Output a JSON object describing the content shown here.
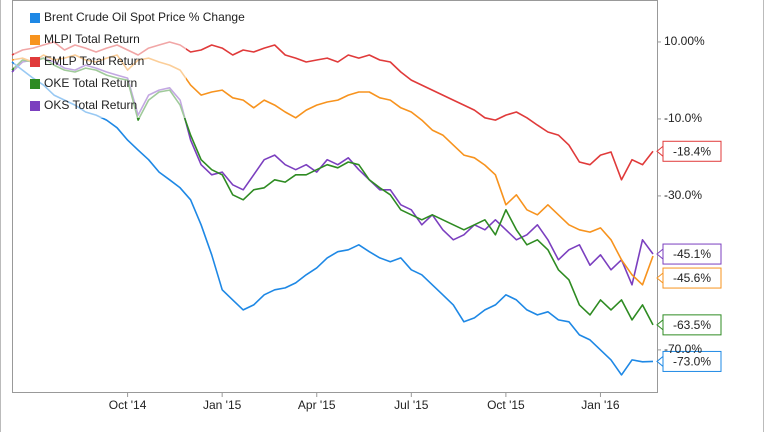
{
  "chart_data": {
    "type": "line",
    "categories": [
      null,
      null,
      null,
      null,
      null,
      null,
      null,
      null,
      null,
      null,
      null,
      "Oct '14",
      null,
      null,
      null,
      null,
      null,
      null,
      null,
      null,
      "Jan '15",
      null,
      null,
      null,
      null,
      null,
      null,
      null,
      null,
      "Apr '15",
      null,
      null,
      null,
      null,
      null,
      null,
      null,
      null,
      "Jul '15",
      null,
      null,
      null,
      null,
      null,
      null,
      null,
      null,
      "Oct '15",
      null,
      null,
      null,
      null,
      null,
      null,
      null,
      null,
      "Jan '16",
      null,
      null,
      null,
      null,
      null
    ],
    "ylim": [
      -81.2,
      20.9
    ],
    "yticks": [
      {
        "value": 10,
        "label": "10.00%"
      },
      {
        "value": -10,
        "label": "-10.0%"
      },
      {
        "value": -30,
        "label": "-30.0%"
      },
      {
        "value": -70,
        "label": "-70.0%"
      }
    ],
    "legend": "top-left",
    "series": [
      {
        "name": "Brent Crude Oil Spot Price % Change",
        "color": "#1e88e5",
        "values": [
          4.8,
          2.7,
          0.6,
          -1.2,
          -3.8,
          -5.1,
          -6.4,
          -8.2,
          -9.0,
          -10.3,
          -12.3,
          -15.5,
          -18.1,
          -20.6,
          -23.8,
          -25.8,
          -27.9,
          -31.0,
          -37.5,
          -45.3,
          -54.4,
          -57.0,
          -59.6,
          -58.3,
          -55.7,
          -54.4,
          -53.9,
          -52.6,
          -50.5,
          -48.7,
          -46.1,
          -44.5,
          -44.0,
          -42.7,
          -44.5,
          -46.1,
          -47.1,
          -46.1,
          -49.2,
          -50.5,
          -53.1,
          -55.7,
          -58.3,
          -62.7,
          -61.7,
          -59.6,
          -58.3,
          -55.7,
          -57.0,
          -59.6,
          -60.9,
          -60.1,
          -62.2,
          -62.7,
          -66.1,
          -67.4,
          -70.0,
          -72.6,
          -76.5,
          -72.6,
          -73.1,
          -73.0
        ],
        "value_labels": [
          null,
          null,
          null,
          null,
          null,
          null,
          null,
          null,
          null,
          null,
          null,
          null,
          null,
          null,
          null,
          null,
          null,
          null,
          null,
          null,
          null,
          null,
          null,
          null,
          null,
          null,
          null,
          null,
          null,
          null,
          null,
          null,
          null,
          null,
          null,
          null,
          null,
          null,
          null,
          null,
          null,
          null,
          null,
          null,
          null,
          null,
          null,
          null,
          null,
          null,
          null,
          null,
          null,
          null,
          null,
          null,
          null,
          null,
          null,
          null,
          null,
          "-73.0%"
        ]
      },
      {
        "name": "MLPI Total Return",
        "color": "#f7931e",
        "values": [
          5.3,
          5.8,
          4.8,
          6.6,
          5.3,
          5.8,
          6.6,
          5.3,
          4.8,
          5.8,
          6.6,
          2.7,
          5.3,
          5.8,
          4.8,
          4.0,
          2.7,
          -1.2,
          -3.8,
          -3.0,
          -2.5,
          -4.5,
          -5.1,
          -7.1,
          -5.1,
          -6.4,
          -8.2,
          -9.7,
          -7.7,
          -6.4,
          -5.6,
          -5.1,
          -3.8,
          -3.0,
          -3.0,
          -4.5,
          -5.1,
          -7.1,
          -8.2,
          -10.3,
          -12.9,
          -14.2,
          -16.8,
          -19.4,
          -20.1,
          -22.0,
          -24.5,
          -32.3,
          -29.7,
          -33.6,
          -34.9,
          -32.3,
          -34.9,
          -37.5,
          -38.8,
          -39.4,
          -38.3,
          -41.4,
          -46.6,
          -50.5,
          -53.1,
          -45.6
        ],
        "value_labels": [
          null,
          null,
          null,
          null,
          null,
          null,
          null,
          null,
          null,
          null,
          null,
          null,
          null,
          null,
          null,
          null,
          null,
          null,
          null,
          null,
          null,
          null,
          null,
          null,
          null,
          null,
          null,
          null,
          null,
          null,
          null,
          null,
          null,
          null,
          null,
          null,
          null,
          null,
          null,
          null,
          null,
          null,
          null,
          null,
          null,
          null,
          null,
          null,
          null,
          null,
          null,
          null,
          null,
          null,
          null,
          null,
          null,
          null,
          null,
          null,
          null,
          "-45.6%"
        ]
      },
      {
        "name": "EMLP Total Return",
        "color": "#e03a3a",
        "values": [
          6.6,
          7.9,
          8.4,
          9.2,
          10.0,
          7.9,
          9.2,
          8.4,
          7.4,
          8.4,
          9.2,
          7.9,
          6.6,
          8.4,
          9.2,
          10.0,
          9.2,
          7.4,
          7.9,
          9.2,
          8.4,
          6.6,
          7.9,
          7.4,
          8.4,
          9.2,
          6.6,
          5.8,
          4.8,
          5.3,
          5.8,
          4.8,
          6.6,
          5.8,
          6.6,
          5.3,
          4.8,
          2.2,
          0.1,
          -1.2,
          -2.5,
          -3.8,
          -5.1,
          -6.4,
          -7.7,
          -9.7,
          -10.3,
          -9.0,
          -8.2,
          -9.7,
          -11.6,
          -13.4,
          -14.2,
          -16.8,
          -21.2,
          -21.9,
          -19.4,
          -18.6,
          -25.8,
          -20.6,
          -21.9,
          -18.4
        ],
        "value_labels": [
          null,
          null,
          null,
          null,
          null,
          null,
          null,
          null,
          null,
          null,
          null,
          null,
          null,
          null,
          null,
          null,
          null,
          null,
          null,
          null,
          null,
          null,
          null,
          null,
          null,
          null,
          null,
          null,
          null,
          null,
          null,
          null,
          null,
          null,
          null,
          null,
          null,
          null,
          null,
          null,
          null,
          null,
          null,
          null,
          null,
          null,
          null,
          null,
          null,
          null,
          null,
          null,
          null,
          null,
          null,
          null,
          null,
          null,
          null,
          null,
          null,
          "-18.4%"
        ]
      },
      {
        "name": "OKE Total Return",
        "color": "#2e8b22",
        "values": [
          2.7,
          5.3,
          4.8,
          5.8,
          4.0,
          2.7,
          2.2,
          3.2,
          2.7,
          1.4,
          0.6,
          0.1,
          -10.3,
          -5.1,
          -3.0,
          -2.5,
          -6.4,
          -14.2,
          -20.6,
          -23.2,
          -24.5,
          -29.7,
          -31.0,
          -28.4,
          -27.9,
          -25.8,
          -26.4,
          -24.5,
          -24.5,
          -23.2,
          -21.9,
          -22.7,
          -21.2,
          -21.9,
          -25.8,
          -27.9,
          -29.7,
          -33.6,
          -34.9,
          -36.2,
          -34.9,
          -36.2,
          -37.5,
          -38.8,
          -37.5,
          -36.2,
          -40.1,
          -33.6,
          -38.8,
          -42.7,
          -41.4,
          -44.0,
          -49.2,
          -51.8,
          -58.3,
          -60.9,
          -57.0,
          -59.6,
          -57.0,
          -62.2,
          -58.3,
          -63.5
        ],
        "value_labels": [
          null,
          null,
          null,
          null,
          null,
          null,
          null,
          null,
          null,
          null,
          null,
          null,
          null,
          null,
          null,
          null,
          null,
          null,
          null,
          null,
          null,
          null,
          null,
          null,
          null,
          null,
          null,
          null,
          null,
          null,
          null,
          null,
          null,
          null,
          null,
          null,
          null,
          null,
          null,
          null,
          null,
          null,
          null,
          null,
          null,
          null,
          null,
          null,
          null,
          null,
          null,
          null,
          null,
          null,
          null,
          null,
          null,
          null,
          null,
          null,
          null,
          "-63.5%"
        ]
      },
      {
        "name": "OKS Total Return",
        "color": "#7b3fbf",
        "values": [
          2.2,
          4.8,
          5.3,
          5.8,
          4.8,
          3.2,
          2.7,
          4.0,
          3.2,
          2.2,
          1.4,
          0.6,
          -9.0,
          -3.8,
          -2.5,
          -1.9,
          -5.1,
          -15.5,
          -21.9,
          -24.5,
          -23.8,
          -27.1,
          -28.4,
          -24.5,
          -20.6,
          -19.4,
          -21.9,
          -23.2,
          -21.9,
          -23.8,
          -20.6,
          -21.9,
          -20.1,
          -23.2,
          -25.8,
          -28.4,
          -28.4,
          -32.3,
          -33.6,
          -37.5,
          -34.9,
          -38.8,
          -41.4,
          -40.1,
          -37.5,
          -38.8,
          -36.2,
          -38.8,
          -41.4,
          -40.1,
          -37.5,
          -41.4,
          -46.6,
          -44.0,
          -42.7,
          -48.0,
          -45.3,
          -49.2,
          -46.6,
          -53.1,
          -41.4,
          -45.1
        ],
        "value_labels": [
          null,
          null,
          null,
          null,
          null,
          null,
          null,
          null,
          null,
          null,
          null,
          null,
          null,
          null,
          null,
          null,
          null,
          null,
          null,
          null,
          null,
          null,
          null,
          null,
          null,
          null,
          null,
          null,
          null,
          null,
          null,
          null,
          null,
          null,
          null,
          null,
          null,
          null,
          null,
          null,
          null,
          null,
          null,
          null,
          null,
          null,
          null,
          null,
          null,
          null,
          null,
          null,
          null,
          null,
          null,
          null,
          null,
          null,
          null,
          null,
          null,
          "-45.1%"
        ]
      }
    ]
  }
}
